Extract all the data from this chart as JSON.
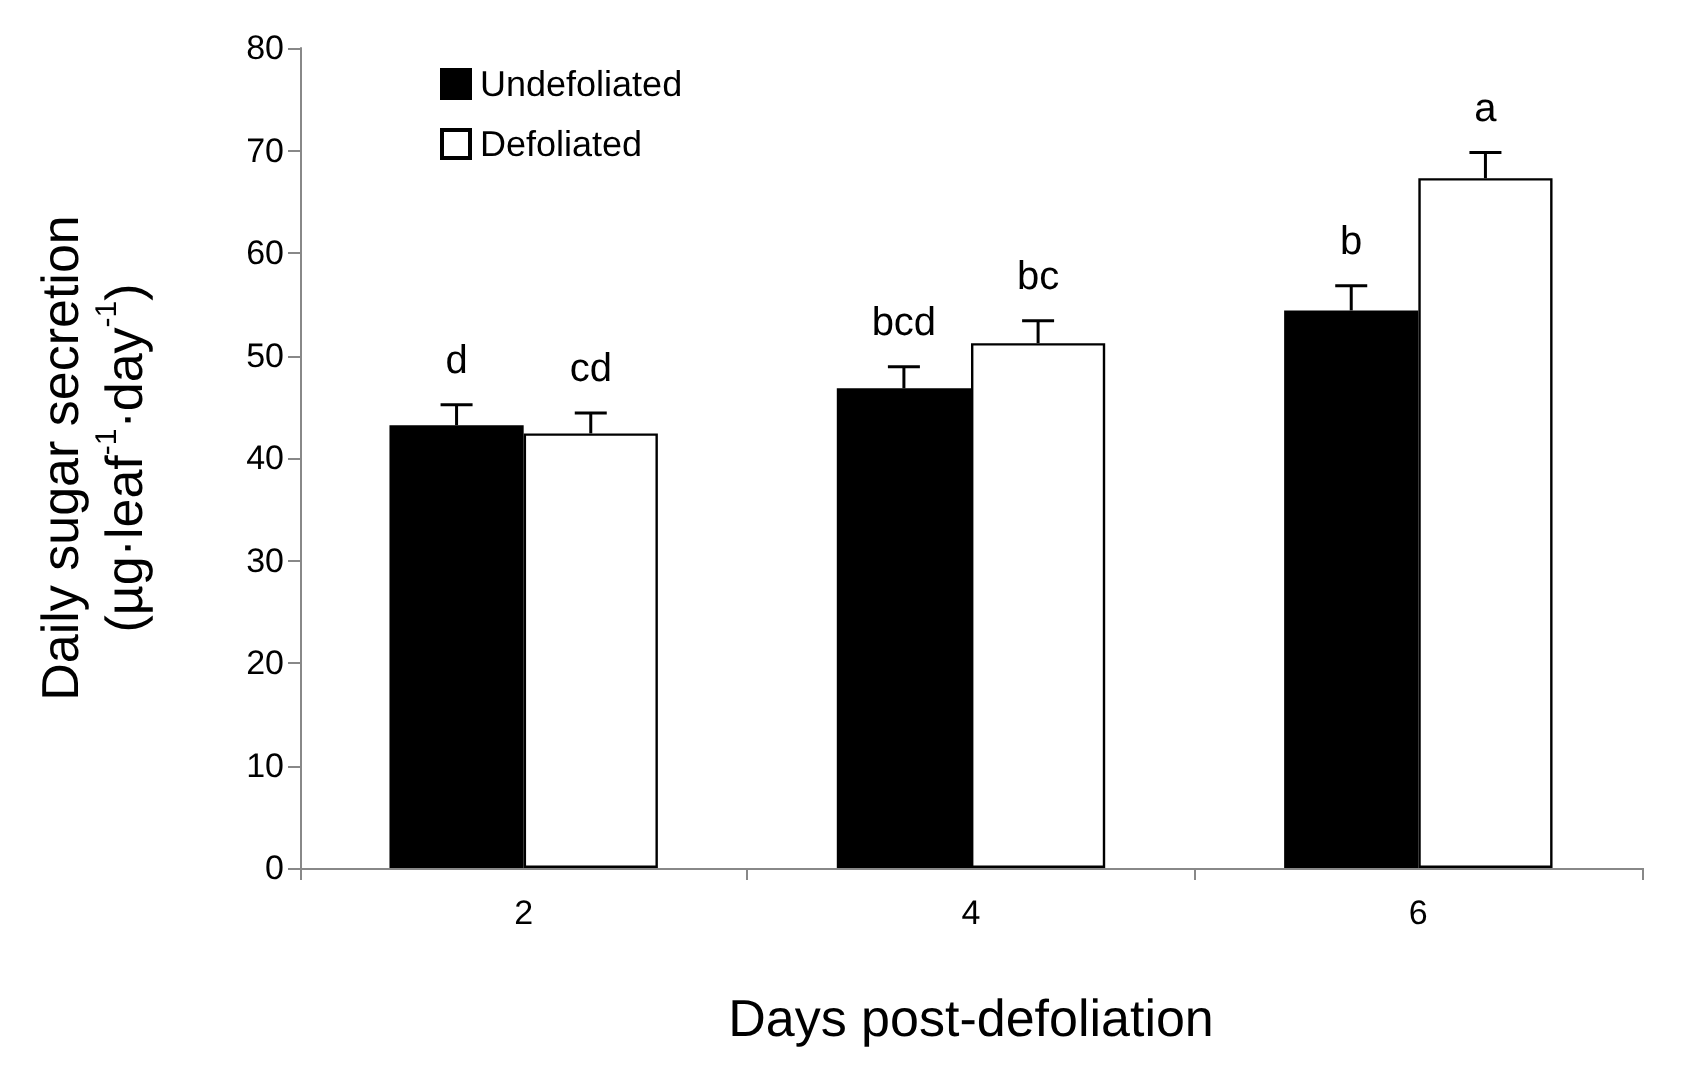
{
  "chart_data": {
    "type": "bar",
    "xlabel": "Days post-defoliation",
    "ylabel": "Daily sugar secretion\n(µg·leaf$^{-1}$·day$^{-1}$)",
    "categories": [
      "2",
      "4",
      "6"
    ],
    "series": [
      {
        "name": "Undefoliated",
        "color": "#000000",
        "values": [
          43.2,
          46.8,
          54.4
        ],
        "errors": [
          [
            43.2,
            45.2
          ],
          [
            46.8,
            48.9
          ],
          [
            54.4,
            56.8
          ]
        ]
      },
      {
        "name": "Defoliated",
        "color": "#ffffff",
        "values": [
          42.4,
          51.2,
          67.3
        ],
        "errors": [
          [
            42.4,
            44.4
          ],
          [
            51.2,
            53.4
          ],
          [
            67.3,
            69.8
          ]
        ]
      }
    ],
    "annotations": [
      {
        "text": "d",
        "x": "2",
        "y": 43.2
      },
      {
        "text": "cd",
        "x": "2",
        "y": 42.4
      },
      {
        "text": "bcd",
        "x": "4",
        "y": 46.8
      },
      {
        "text": "bc",
        "x": "4",
        "y": 51.2
      },
      {
        "text": "b",
        "x": "6",
        "y": 54.4
      },
      {
        "text": "a",
        "x": "6",
        "y": 67.3
      }
    ],
    "ylim": [
      0,
      80
    ],
    "yticks": [
      0,
      10,
      20,
      30,
      40,
      50,
      60,
      70,
      80
    ],
    "grid": false,
    "legend": "top left"
  }
}
